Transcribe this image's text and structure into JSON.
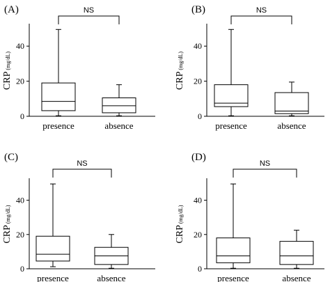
{
  "chart_data": [
    {
      "type": "box",
      "panel_label": "(A)",
      "ylabel": "CRP",
      "ylabel_unit": "(mg/dL)",
      "yticks": [
        0,
        20,
        40
      ],
      "ylim": [
        0,
        52
      ],
      "categories": [
        "presence",
        "absence"
      ],
      "boxes": [
        {
          "category": "presence",
          "min": 0.3,
          "q1": 3.2,
          "median": 8.5,
          "q3": 19,
          "max": 49.5
        },
        {
          "category": "absence",
          "min": 0.3,
          "q1": 2,
          "median": 6,
          "q3": 10.5,
          "max": 18
        }
      ],
      "significance": "NS"
    },
    {
      "type": "box",
      "panel_label": "(B)",
      "ylabel": "CRP",
      "ylabel_unit": "(mg/dL)",
      "yticks": [
        0,
        20,
        40
      ],
      "ylim": [
        0,
        52
      ],
      "categories": [
        "presence",
        "absence"
      ],
      "boxes": [
        {
          "category": "presence",
          "min": 0.3,
          "q1": 5.5,
          "median": 7.5,
          "q3": 18,
          "max": 49.5
        },
        {
          "category": "absence",
          "min": 0.3,
          "q1": 1.5,
          "median": 3,
          "q3": 13.5,
          "max": 19.5
        }
      ],
      "significance": "NS"
    },
    {
      "type": "box",
      "panel_label": "(C)",
      "ylabel": "CRP",
      "ylabel_unit": "(mg/dL)",
      "yticks": [
        0,
        20,
        40
      ],
      "ylim": [
        0,
        52
      ],
      "categories": [
        "presence",
        "absence"
      ],
      "boxes": [
        {
          "category": "presence",
          "min": 1.2,
          "q1": 4.5,
          "median": 8.5,
          "q3": 19,
          "max": 49.5
        },
        {
          "category": "absence",
          "min": 0.3,
          "q1": 2.5,
          "median": 7.5,
          "q3": 12.5,
          "max": 20
        }
      ],
      "significance": "NS"
    },
    {
      "type": "box",
      "panel_label": "(D)",
      "ylabel": "CRP",
      "ylabel_unit": "(mg/dL)",
      "yticks": [
        0,
        20,
        40
      ],
      "ylim": [
        0,
        52
      ],
      "categories": [
        "presence",
        "absence"
      ],
      "boxes": [
        {
          "category": "presence",
          "min": 0.3,
          "q1": 3.5,
          "median": 7.5,
          "q3": 18,
          "max": 49.5
        },
        {
          "category": "absence",
          "min": 0.3,
          "q1": 2.5,
          "median": 7.5,
          "q3": 16,
          "max": 22.5
        }
      ],
      "significance": "NS"
    }
  ]
}
